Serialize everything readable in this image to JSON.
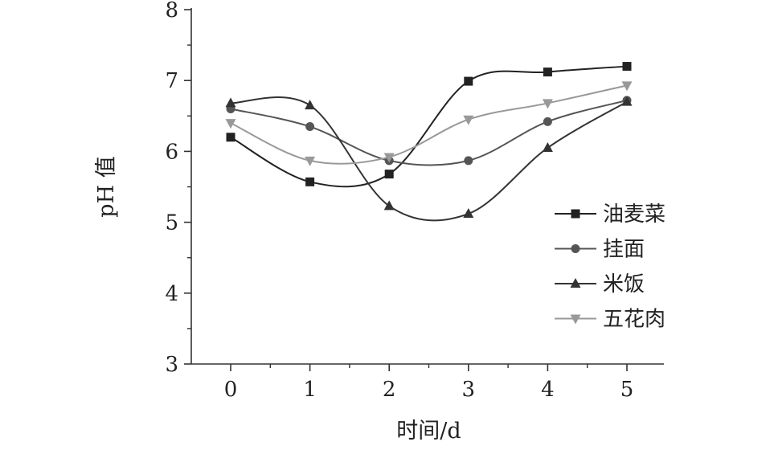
{
  "chart_data": {
    "type": "line",
    "xlabel": "时间/d",
    "ylabel": "pH 值",
    "x": [
      0,
      1,
      2,
      3,
      4,
      5
    ],
    "xlim": [
      -0.5,
      5.5
    ],
    "ylim": [
      3,
      8
    ],
    "x_ticks": [
      "0",
      "1",
      "2",
      "3",
      "4",
      "5"
    ],
    "y_ticks": [
      "3",
      "4",
      "5",
      "6",
      "7",
      "8"
    ],
    "legend_position": "right",
    "grid": false,
    "series": [
      {
        "name": "油麦菜",
        "marker": "square",
        "color": "#222222",
        "values": [
          6.2,
          5.57,
          5.68,
          6.99,
          7.12,
          7.2
        ]
      },
      {
        "name": "挂面",
        "marker": "circle",
        "color": "#555555",
        "values": [
          6.6,
          6.35,
          5.87,
          5.87,
          6.42,
          6.72
        ]
      },
      {
        "name": "米饭",
        "marker": "triangle-up",
        "color": "#333333",
        "values": [
          6.68,
          6.65,
          5.23,
          5.12,
          6.05,
          6.7
        ]
      },
      {
        "name": "五花肉",
        "marker": "triangle-down",
        "color": "#999999",
        "values": [
          6.4,
          5.87,
          5.92,
          6.45,
          6.68,
          6.93
        ]
      }
    ]
  }
}
